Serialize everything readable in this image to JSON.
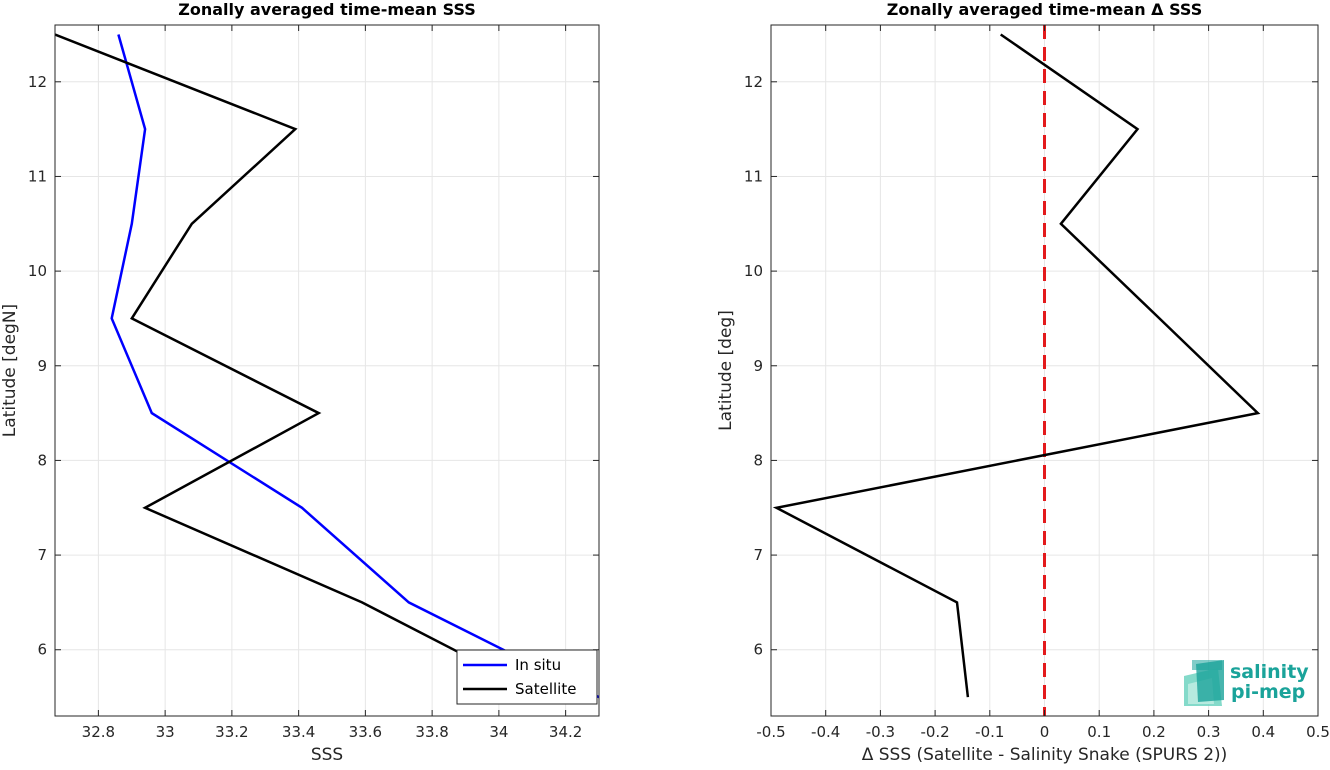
{
  "chart_data": [
    {
      "type": "line",
      "title": "Zonally averaged time-mean SSS",
      "xlabel": "SSS",
      "ylabel": "Latitude [degN]",
      "xlim": [
        32.67,
        34.3
      ],
      "ylim": [
        5.3,
        12.6
      ],
      "xticks": [
        32.8,
        33,
        33.2,
        33.4,
        33.6,
        33.8,
        34,
        34.2
      ],
      "xtick_labels": [
        "32.8",
        "33",
        "33.2",
        "33.4",
        "33.6",
        "33.8",
        "34",
        "34.2"
      ],
      "yticks": [
        6,
        7,
        8,
        9,
        10,
        11,
        12
      ],
      "ytick_labels": [
        "6",
        "7",
        "8",
        "9",
        "10",
        "11",
        "12"
      ],
      "grid": true,
      "legend_position": "bottom-right",
      "series": [
        {
          "name": "In situ",
          "color": "#0000ff",
          "x": [
            34.3,
            34.07,
            33.73,
            33.41,
            32.96,
            32.84,
            32.9,
            32.94,
            32.86
          ],
          "y": [
            5.5,
            5.9,
            6.5,
            7.5,
            8.5,
            9.5,
            10.5,
            11.5,
            12.5
          ]
        },
        {
          "name": "Satellite",
          "color": "#000000",
          "x": [
            33.92,
            33.59,
            32.94,
            33.46,
            32.9,
            33.08,
            33.39,
            32.67
          ],
          "y": [
            5.9,
            6.5,
            7.5,
            8.5,
            9.5,
            10.5,
            11.5,
            12.5
          ]
        }
      ]
    },
    {
      "type": "line",
      "title": "Zonally averaged time-mean Δ SSS",
      "xlabel": "Δ SSS (Satellite - Salinity Snake (SPURS 2))",
      "ylabel": "Latitude [deg]",
      "xlim": [
        -0.5,
        0.5
      ],
      "ylim": [
        5.3,
        12.6
      ],
      "xticks": [
        -0.5,
        -0.4,
        -0.3,
        -0.2,
        -0.1,
        0,
        0.1,
        0.2,
        0.3,
        0.4,
        0.5
      ],
      "xtick_labels": [
        "-0.5",
        "-0.4",
        "-0.3",
        "-0.2",
        "-0.1",
        "0",
        "0.1",
        "0.2",
        "0.3",
        "0.4",
        "0.5"
      ],
      "yticks": [
        6,
        7,
        8,
        9,
        10,
        11,
        12
      ],
      "ytick_labels": [
        "6",
        "7",
        "8",
        "9",
        "10",
        "11",
        "12"
      ],
      "grid": true,
      "series": [
        {
          "color": "#000000",
          "x": [
            -0.14,
            -0.16,
            -0.49,
            0.39,
            0.21,
            0.03,
            0.17,
            -0.08
          ],
          "y": [
            5.5,
            6.5,
            7.5,
            8.5,
            9.5,
            10.5,
            11.5,
            12.5
          ]
        }
      ],
      "reference_line": {
        "x": 0,
        "color": "#e31a1c",
        "style": "dashed"
      }
    }
  ],
  "logo": {
    "line1": "salinity",
    "line2": "pi-mep",
    "color": "#1aa39a"
  }
}
